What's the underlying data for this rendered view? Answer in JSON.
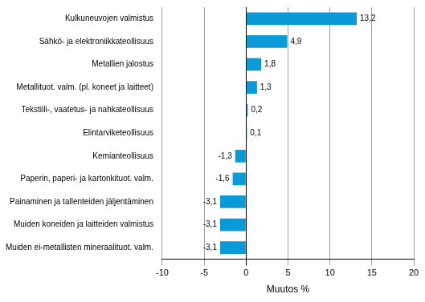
{
  "chart_data": {
    "type": "bar",
    "orientation": "horizontal",
    "categories": [
      "Kulkuneuvojen valmistus",
      "Sähkö- ja elektroniikkateollisuus",
      "Metallien jalostus",
      "Metallituot. valm. (pl. koneet ja laitteet)",
      "Tekstiili-, vaatetus- ja nahkateollisuus",
      "Elintarviketeollisuus",
      "Kemianteollisuus",
      "Paperin, paperi- ja kartonkituot. valm.",
      "Painaminen ja tallenteiden jäljentäminen",
      "Muiden koneiden ja laitteiden valmistus",
      "Muiden ei-metallisten mineraalituot. valm."
    ],
    "values": [
      13.2,
      4.9,
      1.8,
      1.3,
      0.2,
      0.1,
      -1.3,
      -1.6,
      -3.1,
      -3.1,
      -3.1
    ],
    "value_labels": [
      "13,2",
      "4,9",
      "1,8",
      "1,3",
      "0,2",
      "0,1",
      "-1,3",
      "-1,6",
      "-3,1",
      "-3,1",
      "-3,1"
    ],
    "color": "#0a9ad8",
    "x_label": "Muutos %",
    "xlim": [
      -10,
      20
    ],
    "xticks": [
      -10,
      -5,
      0,
      5,
      10,
      15,
      20
    ],
    "grid": true,
    "data_labels": true
  }
}
